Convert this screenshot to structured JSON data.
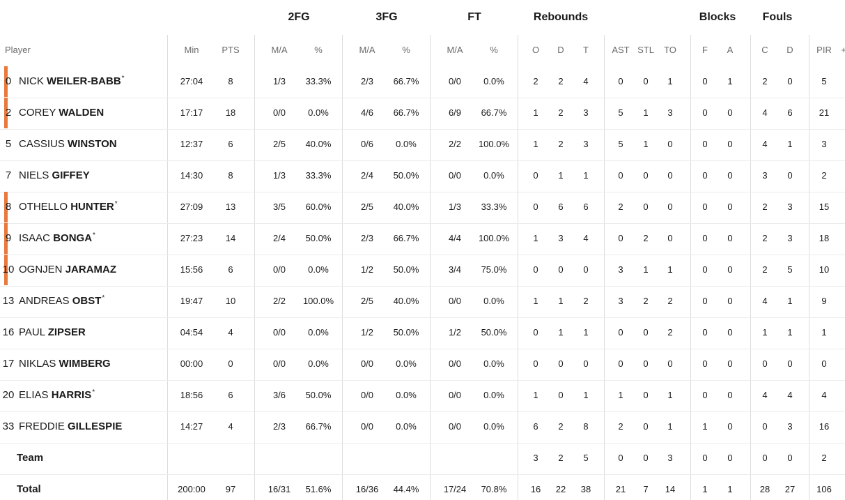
{
  "colors": {
    "starter_marker": "#e87a3c",
    "divider": "#dcdcdc",
    "row_line": "#ececec"
  },
  "groups": [
    "2FG",
    "3FG",
    "FT",
    "Rebounds",
    "Blocks",
    "Fouls"
  ],
  "subheaders": {
    "player": "Player",
    "min": "Min",
    "pts": "PTS",
    "fg2_ma": "M/A",
    "fg2_pct": "%",
    "fg3_ma": "M/A",
    "fg3_pct": "%",
    "ft_ma": "M/A",
    "ft_pct": "%",
    "reb_o": "O",
    "reb_d": "D",
    "reb_t": "T",
    "ast": "AST",
    "stl": "STL",
    "to": "TO",
    "blk_f": "F",
    "blk_a": "A",
    "foul_c": "C",
    "foul_d": "D",
    "pir": "PIR",
    "more": "+"
  },
  "players": [
    {
      "number": "0",
      "first": "NICK",
      "last": "WEILER-BABB",
      "star": "*",
      "starter": true,
      "min": "27:04",
      "pts": "8",
      "fg2_ma": "1/3",
      "fg2_pct": "33.3%",
      "fg3_ma": "2/3",
      "fg3_pct": "66.7%",
      "ft_ma": "0/0",
      "ft_pct": "0.0%",
      "reb_o": "2",
      "reb_d": "2",
      "reb_t": "4",
      "ast": "0",
      "stl": "0",
      "to": "1",
      "blk_f": "0",
      "blk_a": "1",
      "foul_c": "2",
      "foul_d": "0",
      "pir": "5"
    },
    {
      "number": "2",
      "first": "COREY",
      "last": "WALDEN",
      "star": "",
      "starter": true,
      "min": "17:17",
      "pts": "18",
      "fg2_ma": "0/0",
      "fg2_pct": "0.0%",
      "fg3_ma": "4/6",
      "fg3_pct": "66.7%",
      "ft_ma": "6/9",
      "ft_pct": "66.7%",
      "reb_o": "1",
      "reb_d": "2",
      "reb_t": "3",
      "ast": "5",
      "stl": "1",
      "to": "3",
      "blk_f": "0",
      "blk_a": "0",
      "foul_c": "4",
      "foul_d": "6",
      "pir": "21"
    },
    {
      "number": "5",
      "first": "CASSIUS",
      "last": "WINSTON",
      "star": "",
      "starter": false,
      "min": "12:37",
      "pts": "6",
      "fg2_ma": "2/5",
      "fg2_pct": "40.0%",
      "fg3_ma": "0/6",
      "fg3_pct": "0.0%",
      "ft_ma": "2/2",
      "ft_pct": "100.0%",
      "reb_o": "1",
      "reb_d": "2",
      "reb_t": "3",
      "ast": "5",
      "stl": "1",
      "to": "0",
      "blk_f": "0",
      "blk_a": "0",
      "foul_c": "4",
      "foul_d": "1",
      "pir": "3"
    },
    {
      "number": "7",
      "first": "NIELS",
      "last": "GIFFEY",
      "star": "",
      "starter": false,
      "min": "14:30",
      "pts": "8",
      "fg2_ma": "1/3",
      "fg2_pct": "33.3%",
      "fg3_ma": "2/4",
      "fg3_pct": "50.0%",
      "ft_ma": "0/0",
      "ft_pct": "0.0%",
      "reb_o": "0",
      "reb_d": "1",
      "reb_t": "1",
      "ast": "0",
      "stl": "0",
      "to": "0",
      "blk_f": "0",
      "blk_a": "0",
      "foul_c": "3",
      "foul_d": "0",
      "pir": "2"
    },
    {
      "number": "8",
      "first": "OTHELLO",
      "last": "HUNTER",
      "star": "*",
      "starter": true,
      "min": "27:09",
      "pts": "13",
      "fg2_ma": "3/5",
      "fg2_pct": "60.0%",
      "fg3_ma": "2/5",
      "fg3_pct": "40.0%",
      "ft_ma": "1/3",
      "ft_pct": "33.3%",
      "reb_o": "0",
      "reb_d": "6",
      "reb_t": "6",
      "ast": "2",
      "stl": "0",
      "to": "0",
      "blk_f": "0",
      "blk_a": "0",
      "foul_c": "2",
      "foul_d": "3",
      "pir": "15"
    },
    {
      "number": "9",
      "first": "ISAAC",
      "last": "BONGA",
      "star": "*",
      "starter": true,
      "min": "27:23",
      "pts": "14",
      "fg2_ma": "2/4",
      "fg2_pct": "50.0%",
      "fg3_ma": "2/3",
      "fg3_pct": "66.7%",
      "ft_ma": "4/4",
      "ft_pct": "100.0%",
      "reb_o": "1",
      "reb_d": "3",
      "reb_t": "4",
      "ast": "0",
      "stl": "2",
      "to": "0",
      "blk_f": "0",
      "blk_a": "0",
      "foul_c": "2",
      "foul_d": "3",
      "pir": "18"
    },
    {
      "number": "10",
      "first": "OGNJEN",
      "last": "JARAMAZ",
      "star": "",
      "starter": true,
      "min": "15:56",
      "pts": "6",
      "fg2_ma": "0/0",
      "fg2_pct": "0.0%",
      "fg3_ma": "1/2",
      "fg3_pct": "50.0%",
      "ft_ma": "3/4",
      "ft_pct": "75.0%",
      "reb_o": "0",
      "reb_d": "0",
      "reb_t": "0",
      "ast": "3",
      "stl": "1",
      "to": "1",
      "blk_f": "0",
      "blk_a": "0",
      "foul_c": "2",
      "foul_d": "5",
      "pir": "10"
    },
    {
      "number": "13",
      "first": "ANDREAS",
      "last": "OBST",
      "star": "*",
      "starter": false,
      "min": "19:47",
      "pts": "10",
      "fg2_ma": "2/2",
      "fg2_pct": "100.0%",
      "fg3_ma": "2/5",
      "fg3_pct": "40.0%",
      "ft_ma": "0/0",
      "ft_pct": "0.0%",
      "reb_o": "1",
      "reb_d": "1",
      "reb_t": "2",
      "ast": "3",
      "stl": "2",
      "to": "2",
      "blk_f": "0",
      "blk_a": "0",
      "foul_c": "4",
      "foul_d": "1",
      "pir": "9"
    },
    {
      "number": "16",
      "first": "PAUL",
      "last": "ZIPSER",
      "star": "",
      "starter": false,
      "min": "04:54",
      "pts": "4",
      "fg2_ma": "0/0",
      "fg2_pct": "0.0%",
      "fg3_ma": "1/2",
      "fg3_pct": "50.0%",
      "ft_ma": "1/2",
      "ft_pct": "50.0%",
      "reb_o": "0",
      "reb_d": "1",
      "reb_t": "1",
      "ast": "0",
      "stl": "0",
      "to": "2",
      "blk_f": "0",
      "blk_a": "0",
      "foul_c": "1",
      "foul_d": "1",
      "pir": "1"
    },
    {
      "number": "17",
      "first": "NIKLAS",
      "last": "WIMBERG",
      "star": "",
      "starter": false,
      "min": "00:00",
      "pts": "0",
      "fg2_ma": "0/0",
      "fg2_pct": "0.0%",
      "fg3_ma": "0/0",
      "fg3_pct": "0.0%",
      "ft_ma": "0/0",
      "ft_pct": "0.0%",
      "reb_o": "0",
      "reb_d": "0",
      "reb_t": "0",
      "ast": "0",
      "stl": "0",
      "to": "0",
      "blk_f": "0",
      "blk_a": "0",
      "foul_c": "0",
      "foul_d": "0",
      "pir": "0"
    },
    {
      "number": "20",
      "first": "ELIAS",
      "last": "HARRIS",
      "star": "*",
      "starter": false,
      "min": "18:56",
      "pts": "6",
      "fg2_ma": "3/6",
      "fg2_pct": "50.0%",
      "fg3_ma": "0/0",
      "fg3_pct": "0.0%",
      "ft_ma": "0/0",
      "ft_pct": "0.0%",
      "reb_o": "1",
      "reb_d": "0",
      "reb_t": "1",
      "ast": "1",
      "stl": "0",
      "to": "1",
      "blk_f": "0",
      "blk_a": "0",
      "foul_c": "4",
      "foul_d": "4",
      "pir": "4"
    },
    {
      "number": "33",
      "first": "FREDDIE",
      "last": "GILLESPIE",
      "star": "",
      "starter": false,
      "min": "14:27",
      "pts": "4",
      "fg2_ma": "2/3",
      "fg2_pct": "66.7%",
      "fg3_ma": "0/0",
      "fg3_pct": "0.0%",
      "ft_ma": "0/0",
      "ft_pct": "0.0%",
      "reb_o": "6",
      "reb_d": "2",
      "reb_t": "8",
      "ast": "2",
      "stl": "0",
      "to": "1",
      "blk_f": "1",
      "blk_a": "0",
      "foul_c": "0",
      "foul_d": "3",
      "pir": "16"
    }
  ],
  "team": {
    "label": "Team",
    "reb_o": "3",
    "reb_d": "2",
    "reb_t": "5",
    "ast": "0",
    "stl": "0",
    "to": "3",
    "blk_f": "0",
    "blk_a": "0",
    "foul_c": "0",
    "foul_d": "0",
    "pir": "2"
  },
  "total": {
    "label": "Total",
    "min": "200:00",
    "pts": "97",
    "fg2_ma": "16/31",
    "fg2_pct": "51.6%",
    "fg3_ma": "16/36",
    "fg3_pct": "44.4%",
    "ft_ma": "17/24",
    "ft_pct": "70.8%",
    "reb_o": "16",
    "reb_d": "22",
    "reb_t": "38",
    "ast": "21",
    "stl": "7",
    "to": "14",
    "blk_f": "1",
    "blk_a": "1",
    "foul_c": "28",
    "foul_d": "27",
    "pir": "106"
  }
}
